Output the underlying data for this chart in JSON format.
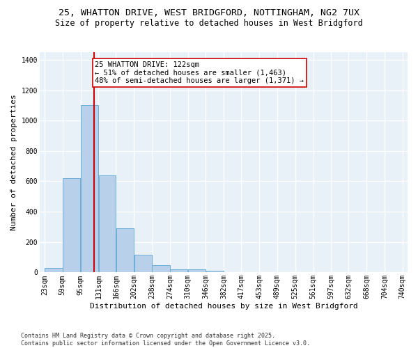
{
  "title1": "25, WHATTON DRIVE, WEST BRIDGFORD, NOTTINGHAM, NG2 7UX",
  "title2": "Size of property relative to detached houses in West Bridgford",
  "xlabel": "Distribution of detached houses by size in West Bridgford",
  "ylabel": "Number of detached properties",
  "bar_color": "#b8d0ea",
  "bar_edge_color": "#6aaed6",
  "bg_color": "#e8f0f8",
  "grid_color": "#ffffff",
  "bins": [
    23,
    59,
    95,
    131,
    166,
    202,
    238,
    274,
    310,
    346,
    382,
    417,
    453,
    489,
    525,
    561,
    597,
    632,
    668,
    704,
    740
  ],
  "counts": [
    28,
    620,
    1100,
    640,
    290,
    115,
    47,
    20,
    20,
    13,
    0,
    0,
    0,
    0,
    0,
    0,
    0,
    0,
    0,
    0
  ],
  "property_size": 122,
  "vline_color": "#cc0000",
  "annotation_text": "25 WHATTON DRIVE: 122sqm\n← 51% of detached houses are smaller (1,463)\n48% of semi-detached houses are larger (1,371) →",
  "annotation_box_color": "#ffffff",
  "annotation_box_edge": "#cc0000",
  "ylim": [
    0,
    1450
  ],
  "yticks": [
    0,
    200,
    400,
    600,
    800,
    1000,
    1200,
    1400
  ],
  "footnote1": "Contains HM Land Registry data © Crown copyright and database right 2025.",
  "footnote2": "Contains public sector information licensed under the Open Government Licence v3.0.",
  "title1_fontsize": 9.5,
  "title2_fontsize": 8.5,
  "axis_fontsize": 8,
  "tick_fontsize": 7,
  "annot_fontsize": 7.5
}
